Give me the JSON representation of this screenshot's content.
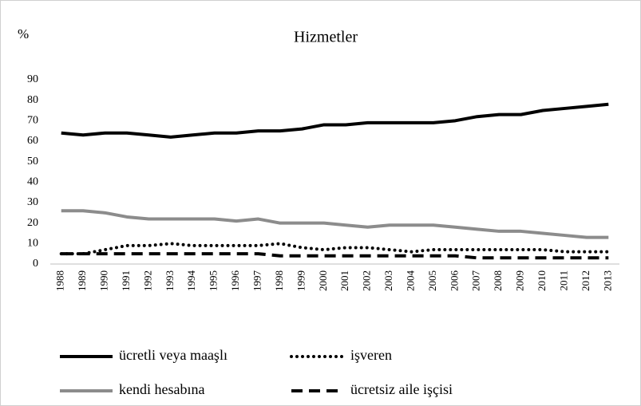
{
  "chart_data": {
    "type": "line",
    "title": "Hizmetler",
    "y_unit": "%",
    "categories": [
      "1988",
      "1989",
      "1990",
      "1991",
      "1992",
      "1993",
      "1994",
      "1995",
      "1996",
      "1997",
      "1998",
      "1999",
      "2000",
      "2001",
      "2002",
      "2003",
      "2004",
      "2005",
      "2006",
      "2007",
      "2008",
      "2009",
      "2010",
      "2011",
      "2012",
      "2013"
    ],
    "series": [
      {
        "name": "ücretli veya maaşlı",
        "color": "#000000",
        "style": "solid",
        "values": [
          64,
          63,
          64,
          64,
          63,
          62,
          63,
          64,
          64,
          65,
          65,
          66,
          68,
          68,
          69,
          69,
          69,
          69,
          70,
          72,
          73,
          73,
          75,
          76,
          77,
          78
        ]
      },
      {
        "name": "işveren",
        "color": "#000000",
        "style": "dotted",
        "values": [
          5,
          5,
          7,
          9,
          9,
          10,
          9,
          9,
          9,
          9,
          10,
          8,
          7,
          8,
          8,
          7,
          6,
          7,
          7,
          7,
          7,
          7,
          7,
          6,
          6,
          6
        ]
      },
      {
        "name": "kendi hesabına",
        "color": "#8c8c8c",
        "style": "solid",
        "values": [
          26,
          26,
          25,
          23,
          22,
          22,
          22,
          22,
          21,
          22,
          20,
          20,
          20,
          19,
          18,
          19,
          19,
          19,
          18,
          17,
          16,
          16,
          15,
          14,
          13,
          13
        ]
      },
      {
        "name": "ücretsiz aile işçisi",
        "color": "#000000",
        "style": "dashed",
        "values": [
          5,
          5,
          5,
          5,
          5,
          5,
          5,
          5,
          5,
          5,
          4,
          4,
          4,
          4,
          4,
          4,
          4,
          4,
          4,
          3,
          3,
          3,
          3,
          3,
          3,
          3
        ]
      }
    ],
    "ylim": [
      0,
      90
    ],
    "yticks": [
      0,
      10,
      20,
      30,
      40,
      50,
      60,
      70,
      80,
      90
    ],
    "grid": false
  }
}
